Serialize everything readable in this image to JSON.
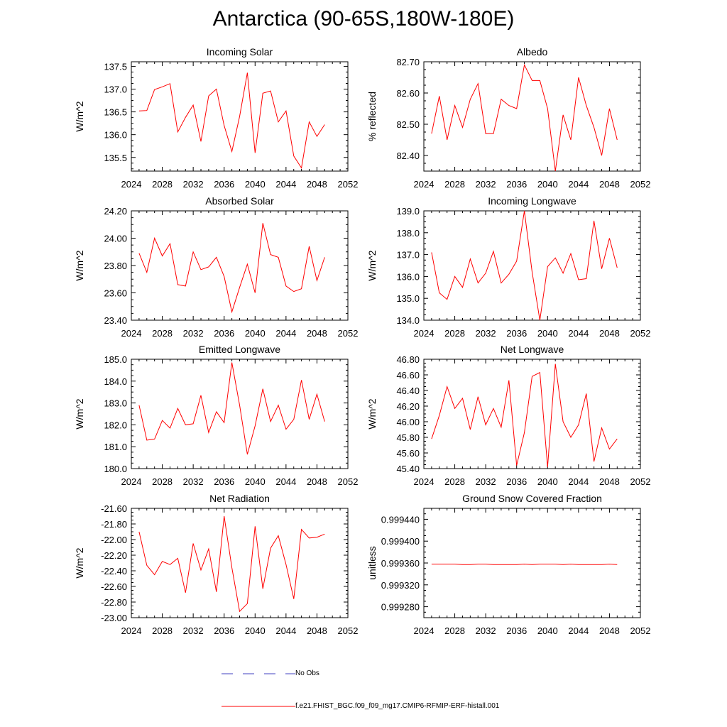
{
  "figure": {
    "title": "Antarctica (90-65S,180W-180E)",
    "line_color": "#ff0000",
    "obs_color": "#4040c0"
  },
  "legend": {
    "obs_label": "No Obs",
    "model_label": "f.e21.FHIST_BGC.f09_f09_mg17.CMIP6-RFMIP-ERF-histall.001"
  },
  "chart_data": [
    {
      "type": "line",
      "title": "Incoming Solar",
      "ylabel": "W/m^2",
      "xlim": [
        2024,
        2052
      ],
      "xticks": [
        2024,
        2028,
        2032,
        2036,
        2040,
        2044,
        2048,
        2052
      ],
      "ylim": [
        135.2,
        137.6
      ],
      "yticks": [
        135.5,
        136.0,
        136.5,
        137.0,
        137.5
      ],
      "ydecimals": 1,
      "x": [
        2025,
        2026,
        2027,
        2028,
        2029,
        2030,
        2031,
        2032,
        2033,
        2034,
        2035,
        2036,
        2037,
        2038,
        2039,
        2040,
        2041,
        2042,
        2043,
        2044,
        2045,
        2046,
        2047,
        2048,
        2049
      ],
      "y": [
        136.52,
        136.53,
        136.99,
        137.05,
        137.12,
        136.06,
        136.38,
        136.65,
        135.85,
        136.85,
        137.0,
        136.2,
        135.63,
        136.4,
        137.36,
        135.6,
        136.91,
        136.96,
        136.28,
        136.52,
        135.53,
        135.27,
        136.28,
        135.96,
        136.22
      ]
    },
    {
      "type": "line",
      "title": "Albedo",
      "ylabel": "% reflected",
      "xlim": [
        2024,
        2052
      ],
      "xticks": [
        2024,
        2028,
        2032,
        2036,
        2040,
        2044,
        2048,
        2052
      ],
      "ylim": [
        82.35,
        82.7
      ],
      "yticks": [
        82.4,
        82.5,
        82.6,
        82.7
      ],
      "ydecimals": 2,
      "x": [
        2025,
        2026,
        2027,
        2028,
        2029,
        2030,
        2031,
        2032,
        2033,
        2034,
        2035,
        2036,
        2037,
        2038,
        2039,
        2040,
        2041,
        2042,
        2043,
        2044,
        2045,
        2046,
        2047,
        2048,
        2049
      ],
      "y": [
        82.47,
        82.59,
        82.45,
        82.56,
        82.49,
        82.58,
        82.63,
        82.47,
        82.47,
        82.58,
        82.56,
        82.55,
        82.69,
        82.64,
        82.64,
        82.55,
        82.35,
        82.53,
        82.45,
        82.65,
        82.56,
        82.49,
        82.4,
        82.55,
        82.45
      ]
    },
    {
      "type": "line",
      "title": "Absorbed Solar",
      "ylabel": "W/m^2",
      "xlim": [
        2024,
        2052
      ],
      "xticks": [
        2024,
        2028,
        2032,
        2036,
        2040,
        2044,
        2048,
        2052
      ],
      "ylim": [
        23.4,
        24.2
      ],
      "yticks": [
        23.4,
        23.6,
        23.8,
        24.0,
        24.2
      ],
      "ydecimals": 2,
      "x": [
        2025,
        2026,
        2027,
        2028,
        2029,
        2030,
        2031,
        2032,
        2033,
        2034,
        2035,
        2036,
        2037,
        2038,
        2039,
        2040,
        2041,
        2042,
        2043,
        2044,
        2045,
        2046,
        2047,
        2048,
        2049
      ],
      "y": [
        23.89,
        23.75,
        24.0,
        23.87,
        23.96,
        23.66,
        23.65,
        23.9,
        23.77,
        23.79,
        23.86,
        23.72,
        23.46,
        23.64,
        23.81,
        23.6,
        24.11,
        23.88,
        23.86,
        23.65,
        23.61,
        23.63,
        23.94,
        23.69,
        23.86
      ]
    },
    {
      "type": "line",
      "title": "Incoming Longwave",
      "ylabel": "W/m^2",
      "xlim": [
        2024,
        2052
      ],
      "xticks": [
        2024,
        2028,
        2032,
        2036,
        2040,
        2044,
        2048,
        2052
      ],
      "ylim": [
        134.0,
        139.0
      ],
      "yticks": [
        134.0,
        135.0,
        136.0,
        137.0,
        138.0,
        139.0
      ],
      "ydecimals": 1,
      "x": [
        2025,
        2026,
        2027,
        2028,
        2029,
        2030,
        2031,
        2032,
        2033,
        2034,
        2035,
        2036,
        2037,
        2038,
        2039,
        2040,
        2041,
        2042,
        2043,
        2044,
        2045,
        2046,
        2047,
        2048,
        2049
      ],
      "y": [
        137.1,
        135.25,
        134.95,
        136.0,
        135.5,
        136.8,
        135.7,
        136.15,
        137.15,
        135.7,
        136.1,
        136.7,
        139.0,
        136.2,
        134.0,
        136.45,
        136.85,
        136.15,
        137.05,
        135.85,
        135.9,
        138.55,
        136.35,
        137.75,
        136.4
      ]
    },
    {
      "type": "line",
      "title": "Emitted Longwave",
      "ylabel": "W/m^2",
      "xlim": [
        2024,
        2052
      ],
      "xticks": [
        2024,
        2028,
        2032,
        2036,
        2040,
        2044,
        2048,
        2052
      ],
      "ylim": [
        180.0,
        185.0
      ],
      "yticks": [
        180.0,
        181.0,
        182.0,
        183.0,
        184.0,
        185.0
      ],
      "ydecimals": 1,
      "x": [
        2025,
        2026,
        2027,
        2028,
        2029,
        2030,
        2031,
        2032,
        2033,
        2034,
        2035,
        2036,
        2037,
        2038,
        2039,
        2040,
        2041,
        2042,
        2043,
        2044,
        2045,
        2046,
        2047,
        2048,
        2049
      ],
      "y": [
        182.9,
        181.3,
        181.35,
        182.2,
        181.85,
        182.75,
        182.0,
        182.05,
        183.35,
        181.65,
        182.6,
        182.1,
        184.85,
        182.9,
        180.65,
        181.95,
        183.65,
        182.15,
        182.9,
        181.8,
        182.25,
        184.05,
        182.25,
        183.4,
        182.15
      ]
    },
    {
      "type": "line",
      "title": "Net Longwave",
      "ylabel": "W/m^2",
      "xlim": [
        2024,
        2052
      ],
      "xticks": [
        2024,
        2028,
        2032,
        2036,
        2040,
        2044,
        2048,
        2052
      ],
      "ylim": [
        45.4,
        46.8
      ],
      "yticks": [
        45.4,
        45.6,
        45.8,
        46.0,
        46.2,
        46.4,
        46.6,
        46.8
      ],
      "ydecimals": 2,
      "x": [
        2025,
        2026,
        2027,
        2028,
        2029,
        2030,
        2031,
        2032,
        2033,
        2034,
        2035,
        2036,
        2037,
        2038,
        2039,
        2040,
        2041,
        2042,
        2043,
        2044,
        2045,
        2046,
        2047,
        2048,
        2049
      ],
      "y": [
        45.78,
        46.08,
        46.45,
        46.17,
        46.3,
        45.9,
        46.32,
        45.96,
        46.17,
        45.93,
        46.53,
        45.44,
        45.86,
        46.58,
        46.63,
        45.42,
        46.74,
        46.0,
        45.8,
        45.96,
        46.36,
        45.49,
        45.92,
        45.65,
        45.78
      ]
    },
    {
      "type": "line",
      "title": "Net Radiation",
      "ylabel": "W/m^2",
      "xlim": [
        2024,
        2052
      ],
      "xticks": [
        2024,
        2028,
        2032,
        2036,
        2040,
        2044,
        2048,
        2052
      ],
      "ylim": [
        -23.0,
        -21.6
      ],
      "yticks": [
        -23.0,
        -22.8,
        -22.6,
        -22.4,
        -22.2,
        -22.0,
        -21.8,
        -21.6
      ],
      "ydecimals": 2,
      "x": [
        2025,
        2026,
        2027,
        2028,
        2029,
        2030,
        2031,
        2032,
        2033,
        2034,
        2035,
        2036,
        2037,
        2038,
        2039,
        2040,
        2041,
        2042,
        2043,
        2044,
        2045,
        2046,
        2047,
        2048,
        2049
      ],
      "y": [
        -21.9,
        -22.33,
        -22.45,
        -22.28,
        -22.32,
        -22.24,
        -22.68,
        -22.05,
        -22.39,
        -22.12,
        -22.67,
        -21.7,
        -22.36,
        -22.92,
        -22.82,
        -21.83,
        -22.63,
        -22.11,
        -21.95,
        -22.32,
        -22.76,
        -21.87,
        -21.98,
        -21.97,
        -21.93
      ]
    },
    {
      "type": "line",
      "title": "Ground Snow Covered Fraction",
      "ylabel": "unitless",
      "xlim": [
        2024,
        2052
      ],
      "xticks": [
        2024,
        2028,
        2032,
        2036,
        2040,
        2044,
        2048,
        2052
      ],
      "ylim": [
        0.99926,
        0.99946
      ],
      "yticks": [
        0.99928,
        0.99932,
        0.99936,
        0.9994,
        0.99944
      ],
      "ydecimals": 6,
      "x": [
        2025,
        2026,
        2027,
        2028,
        2029,
        2030,
        2031,
        2032,
        2033,
        2034,
        2035,
        2036,
        2037,
        2038,
        2039,
        2040,
        2041,
        2042,
        2043,
        2044,
        2045,
        2046,
        2047,
        2048,
        2049
      ],
      "y": [
        0.999358,
        0.999358,
        0.999358,
        0.999358,
        0.999357,
        0.999357,
        0.999358,
        0.999358,
        0.999357,
        0.999357,
        0.999357,
        0.999357,
        0.999358,
        0.999357,
        0.999358,
        0.999358,
        0.999358,
        0.999357,
        0.999358,
        0.999357,
        0.999357,
        0.999357,
        0.999357,
        0.999358,
        0.999357
      ]
    }
  ]
}
